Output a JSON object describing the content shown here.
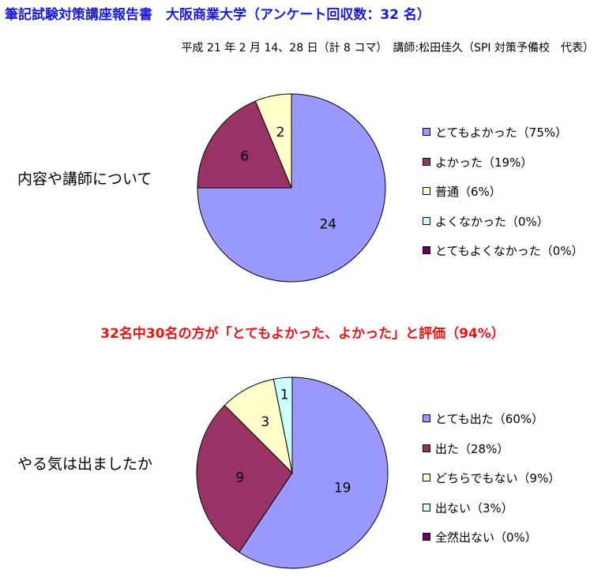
{
  "header": {
    "title": "筆記試験対策講座報告書　大阪商業大学（アンケート回収数：32 名）",
    "subtitle": "平成 21 年 2 月 14、28 日（計 8 コマ）　講師:松田佳久（SPI 対策予備校　代表）"
  },
  "highlight": "32名中30名の方が「とてもよかった、よかった」と評価（94%）",
  "chart_data": [
    {
      "type": "pie",
      "title": "内容や講師について",
      "labels": [
        "とてもよかった",
        "よかった",
        "普通",
        "よくなかった",
        "とてもよくなかった"
      ],
      "legend_entries": [
        "とてもよかった（75%）",
        "よかった（19%）",
        "普通（6%）",
        "よくなかった（0%）",
        "とてもよくなかった（0%）"
      ],
      "values": [
        24,
        6,
        2,
        0,
        0
      ],
      "colors": [
        "#9999ff",
        "#993366",
        "#ffffcc",
        "#ccffff",
        "#660066"
      ],
      "legend_position": "right"
    },
    {
      "type": "pie",
      "title": "やる気は出ましたか",
      "labels": [
        "とても出た",
        "出た",
        "どちらでもない",
        "出ない",
        "全然出ない"
      ],
      "legend_entries": [
        "とても出た（60%）",
        "出た（28%）",
        "どちらでもない（9%）",
        "出ない（3%）",
        "全然出ない（0%）"
      ],
      "values": [
        19,
        9,
        3,
        1,
        0
      ],
      "colors": [
        "#9999ff",
        "#993366",
        "#ffffcc",
        "#ccffff",
        "#660066"
      ],
      "legend_position": "right"
    }
  ]
}
